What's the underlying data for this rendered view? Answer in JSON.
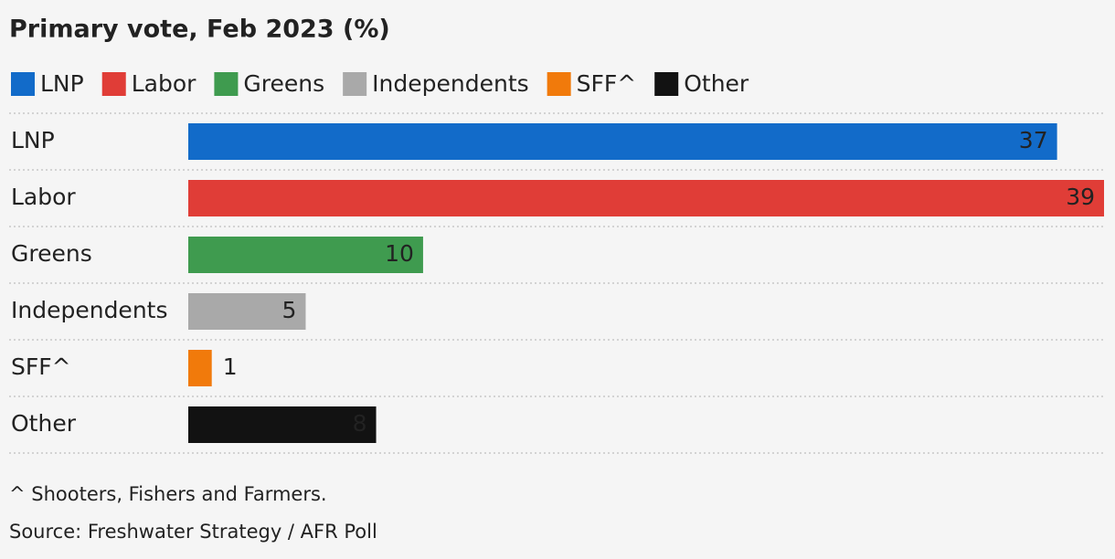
{
  "chart_data": {
    "type": "hbar",
    "title": "Primary vote, Feb 2023 (%)",
    "categories": [
      "LNP",
      "Labor",
      "Greens",
      "Independents",
      "SFF^",
      "Other"
    ],
    "values": [
      37,
      39,
      10,
      5,
      1,
      8
    ],
    "colors": [
      "#126bc9",
      "#e03d37",
      "#3f9b4f",
      "#a9a9a9",
      "#f17a0b",
      "#121212"
    ],
    "note": "^ Shooters, Fishers and Farmers.",
    "source": "Source: Freshwater Strategy / AFR Poll"
  }
}
